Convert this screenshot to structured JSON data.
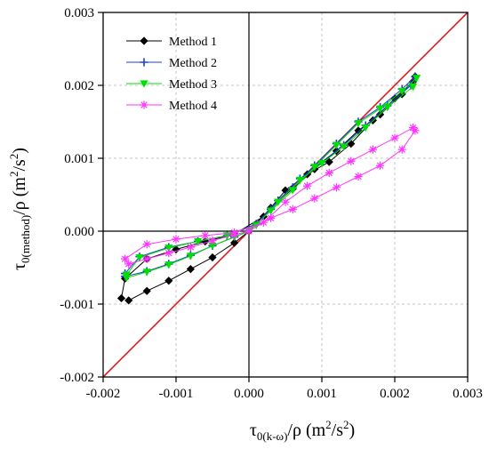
{
  "chart_data": {
    "type": "scatter",
    "xlabel": "τ0(k-ω)/ρ (m²/s²)",
    "ylabel": "τ0(method)/ρ (m²/s²)",
    "xlabel_parts": {
      "sym": "τ",
      "sub": "0(k-ω)",
      "mid": "/ρ (m",
      "sup1": "2",
      "slash": "/s",
      "sup2": "2",
      "end": ")"
    },
    "ylabel_parts": {
      "sym": "τ",
      "sub": "0(method)",
      "mid": "/ρ (m",
      "sup1": "2",
      "slash": "/s",
      "sup2": "2",
      "end": ")"
    },
    "xlim": [
      -0.002,
      0.003
    ],
    "ylim": [
      -0.002,
      0.003
    ],
    "x_ticks": [
      "-0.002",
      "-0.001",
      "0.000",
      "0.001",
      "0.002",
      "0.003"
    ],
    "y_ticks": [
      "-0.002",
      "-0.001",
      "0.000",
      "0.001",
      "0.002",
      "0.003"
    ],
    "x_tick_values": [
      -0.002,
      -0.001,
      0.0,
      0.001,
      0.002,
      0.003
    ],
    "y_tick_values": [
      -0.002,
      -0.001,
      0.0,
      0.001,
      0.002,
      0.003
    ],
    "grid": true,
    "legend_position": "top-left",
    "reference_line": {
      "type": "y=x",
      "color": "#e31a1c"
    },
    "series": [
      {
        "name": "Method 1",
        "marker": "diamond",
        "color": "#000000",
        "x": [
          -0.00165,
          -0.0014,
          -0.0011,
          -0.0008,
          -0.0005,
          -0.0002,
          0.0,
          0.0003,
          0.0006,
          0.0009,
          0.0012,
          0.0015,
          0.0018,
          0.0021,
          0.00228,
          0.00225,
          0.002,
          0.0017,
          0.0014,
          0.0011,
          0.0008,
          0.0005,
          0.0002,
          -0.0002,
          -0.0006,
          -0.001,
          -0.0014,
          -0.0017,
          -0.00175
        ],
        "y": [
          -0.00095,
          -0.00082,
          -0.00068,
          -0.00052,
          -0.00036,
          -0.00016,
          0.0,
          0.00032,
          0.00058,
          0.00085,
          0.0011,
          0.00138,
          0.0016,
          0.00188,
          0.00212,
          0.00205,
          0.00182,
          0.00152,
          0.0012,
          0.00095,
          0.00078,
          0.00056,
          0.0002,
          -4e-05,
          -0.00014,
          -0.00025,
          -0.00038,
          -0.00065,
          -0.00092
        ]
      },
      {
        "name": "Method 2",
        "marker": "plus",
        "color": "#1f3ecf",
        "x": [
          -0.0017,
          -0.0014,
          -0.0011,
          -0.0008,
          -0.0005,
          -0.0002,
          0.0,
          0.0003,
          0.0006,
          0.0009,
          0.0012,
          0.0015,
          0.0018,
          0.0021,
          0.00228,
          0.00222,
          0.0019,
          0.0016,
          0.0013,
          0.001,
          0.0007,
          0.0004,
          0.0001,
          -0.0003,
          -0.0007,
          -0.0011,
          -0.0015,
          -0.0017
        ],
        "y": [
          -0.00062,
          -0.00055,
          -0.00045,
          -0.00033,
          -0.0002,
          -8e-05,
          0.0,
          0.0003,
          0.0006,
          0.0009,
          0.0012,
          0.0015,
          0.0017,
          0.00195,
          0.00212,
          0.002,
          0.00172,
          0.00145,
          0.00118,
          0.00095,
          0.00072,
          0.00042,
          0.0001,
          -6e-05,
          -0.00014,
          -0.00022,
          -0.00035,
          -0.00058
        ]
      },
      {
        "name": "Method 3",
        "marker": "triangle-down",
        "color": "#00e000",
        "x": [
          -0.00168,
          -0.0014,
          -0.0011,
          -0.0008,
          -0.0005,
          -0.0002,
          0.0,
          0.0003,
          0.0006,
          0.0009,
          0.0012,
          0.0015,
          0.0018,
          0.0021,
          0.0023,
          0.00225,
          0.0019,
          0.0016,
          0.0013,
          0.001,
          0.0007,
          0.0004,
          0.0001,
          -0.0003,
          -0.0007,
          -0.0011,
          -0.0015,
          -0.00168
        ],
        "y": [
          -0.00064,
          -0.00056,
          -0.00046,
          -0.00034,
          -0.0002,
          -8e-05,
          0.0,
          0.00028,
          0.00056,
          0.00088,
          0.00118,
          0.00148,
          0.00168,
          0.00192,
          0.0021,
          0.00198,
          0.0017,
          0.00142,
          0.00116,
          0.00093,
          0.0007,
          0.0004,
          8e-05,
          -6e-05,
          -0.00014,
          -0.00023,
          -0.00036,
          -0.0006
        ]
      },
      {
        "name": "Method 4",
        "marker": "asterisk",
        "color": "#ff33ff",
        "x": [
          -0.00165,
          -0.0014,
          -0.0011,
          -0.0008,
          -0.0005,
          -0.0002,
          0.0,
          0.0003,
          0.0006,
          0.0009,
          0.0012,
          0.0015,
          0.0018,
          0.0021,
          0.00228,
          0.00225,
          0.002,
          0.0017,
          0.0014,
          0.0011,
          0.0008,
          0.0005,
          0.0002,
          -0.0002,
          -0.0006,
          -0.001,
          -0.0014,
          -0.0017
        ],
        "y": [
          -0.00045,
          -0.00038,
          -0.0003,
          -0.00022,
          -0.00013,
          -5e-05,
          0.0,
          0.00018,
          0.0003,
          0.00045,
          0.0006,
          0.00075,
          0.0009,
          0.00112,
          0.00138,
          0.00142,
          0.00128,
          0.00112,
          0.00096,
          0.0008,
          0.00062,
          0.0004,
          0.00012,
          -2e-05,
          -6e-05,
          -0.00011,
          -0.00018,
          -0.00038
        ]
      }
    ]
  }
}
